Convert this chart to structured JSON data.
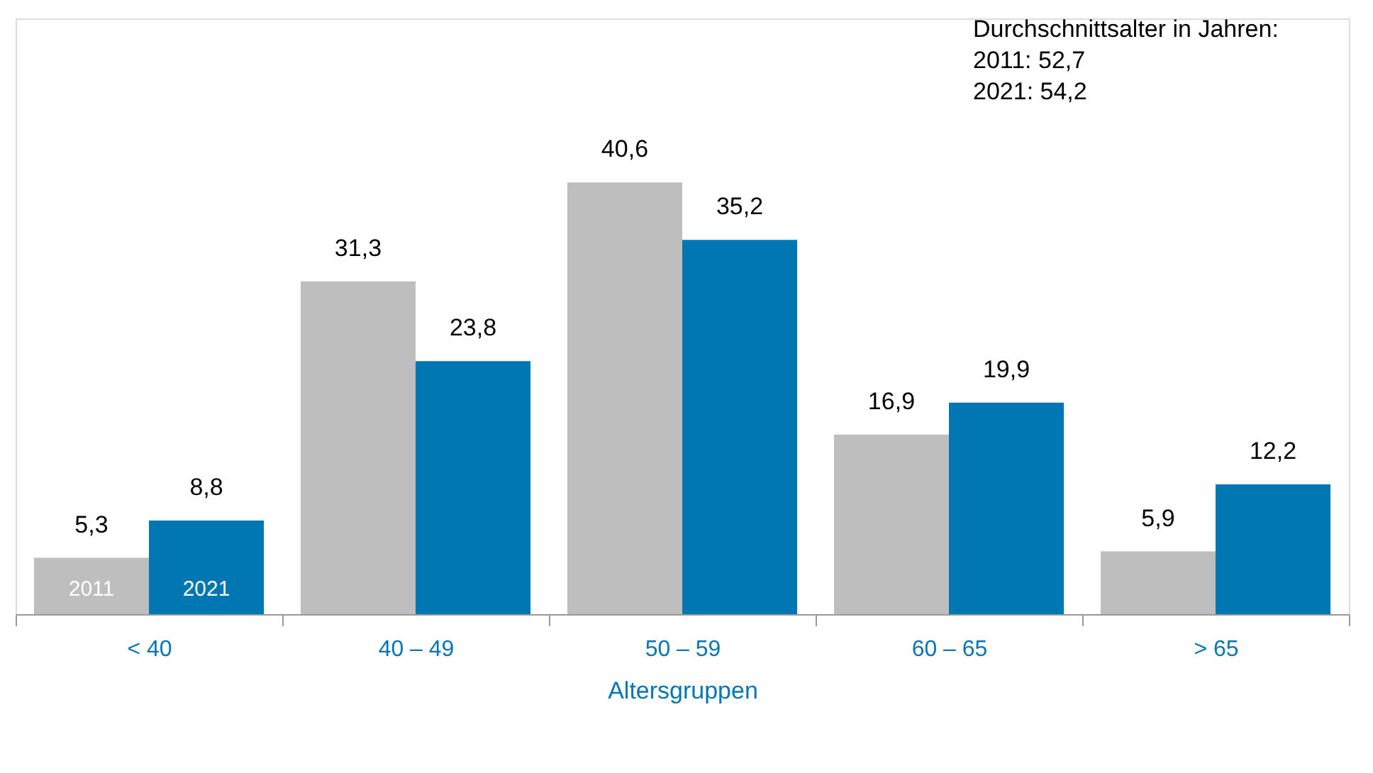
{
  "chart_data": {
    "type": "bar",
    "xlabel": "Altersgruppen",
    "categories": [
      "< 40",
      "40 – 49",
      "50 – 59",
      "60 – 65",
      "> 65"
    ],
    "series": [
      {
        "name": "2011",
        "color": "#bdbebd",
        "values": [
          5.3,
          31.3,
          40.6,
          16.9,
          5.9
        ],
        "value_labels": [
          "5,3",
          "31,3",
          "40,6",
          "16,9",
          "5,9"
        ]
      },
      {
        "name": "2021",
        "color": "#0077b3",
        "values": [
          8.8,
          23.8,
          35.2,
          19.9,
          12.2
        ],
        "value_labels": [
          "8,8",
          "23,8",
          "35,2",
          "19,9",
          "12,2"
        ]
      }
    ],
    "legend": false,
    "grid": false,
    "annotations": [
      "Durchschnittsalter in Jahren:",
      "2011:  52,7",
      "2021: 54,2"
    ]
  }
}
